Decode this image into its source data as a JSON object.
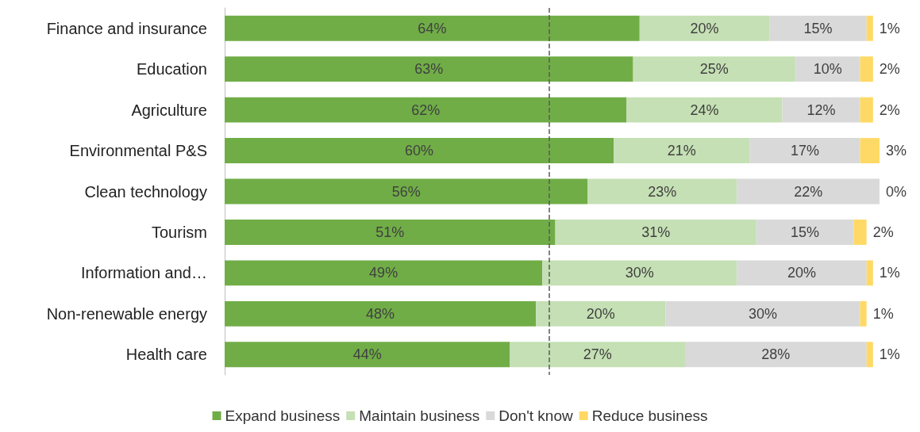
{
  "chart_data": {
    "type": "bar",
    "orientation": "horizontal",
    "stacked": true,
    "categories": [
      "Finance and insurance",
      "Education",
      "Agriculture",
      "Environmental P&S",
      "Clean technology",
      "Tourism",
      "Information and…",
      "Non-renewable energy",
      "Health care"
    ],
    "series": [
      {
        "name": "Expand business",
        "color": "#70ad47",
        "values": [
          64,
          63,
          62,
          60,
          56,
          51,
          49,
          48,
          44
        ],
        "value_labels": [
          "64%",
          "63%",
          "62%",
          "60%",
          "56%",
          "51%",
          "49%",
          "48%",
          "44%"
        ]
      },
      {
        "name": "Maintain business",
        "color": "#c5e0b4",
        "values": [
          20,
          25,
          24,
          21,
          23,
          31,
          30,
          20,
          27
        ],
        "value_labels": [
          "20%",
          "25%",
          "24%",
          "21%",
          "23%",
          "31%",
          "30%",
          "20%",
          "27%"
        ]
      },
      {
        "name": "Don't know",
        "color": "#d9d9d9",
        "values": [
          15,
          10,
          12,
          17,
          22,
          15,
          20,
          30,
          28
        ],
        "value_labels": [
          "15%",
          "10%",
          "12%",
          "17%",
          "22%",
          "15%",
          "20%",
          "30%",
          "28%"
        ]
      },
      {
        "name": "Reduce business",
        "color": "#ffd966",
        "values": [
          1,
          2,
          2,
          3,
          0,
          2,
          1,
          1,
          1
        ],
        "value_labels": [
          "1%",
          "2%",
          "2%",
          "3%",
          "0%",
          "2%",
          "1%",
          "1%",
          "1%"
        ]
      }
    ],
    "xlim": [
      0,
      101
    ],
    "tick_labels": "y",
    "grid": false,
    "legend": "bottom",
    "ref_lines": [
      {
        "axis": "x",
        "value": 50,
        "label": null,
        "color": "#595959",
        "line_style": "dashed"
      }
    ]
  }
}
